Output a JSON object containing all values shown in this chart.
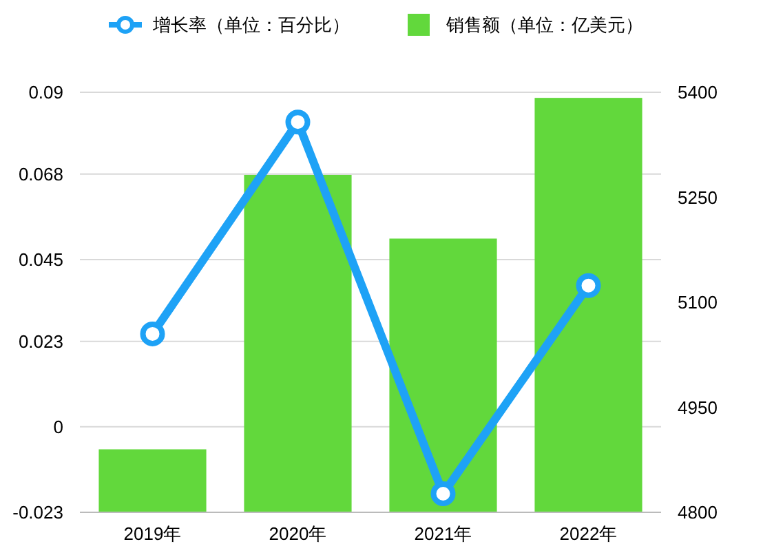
{
  "chart_data": {
    "type": "bar",
    "categories": [
      "2019年",
      "2020年",
      "2021年",
      "2022年"
    ],
    "series": [
      {
        "name": "增长率（单位：百分比）",
        "type": "line",
        "color": "#1ea2f6",
        "values": [
          0.025,
          0.082,
          -0.018,
          0.038
        ]
      },
      {
        "name": "销售额（单位：亿美元）",
        "axis": "y2",
        "color": "#62d83c",
        "values": [
          4890,
          5282,
          5191,
          5392
        ]
      }
    ],
    "ylim": [
      -0.023,
      0.09
    ],
    "yticks": [
      -0.023,
      0,
      0.023,
      0.045,
      0.068,
      0.09
    ],
    "y2lim": [
      4800,
      5400
    ],
    "y2ticks": [
      4800,
      4950,
      5100,
      5250,
      5400
    ],
    "grid": "y",
    "legend": "top",
    "marker": "circle"
  }
}
